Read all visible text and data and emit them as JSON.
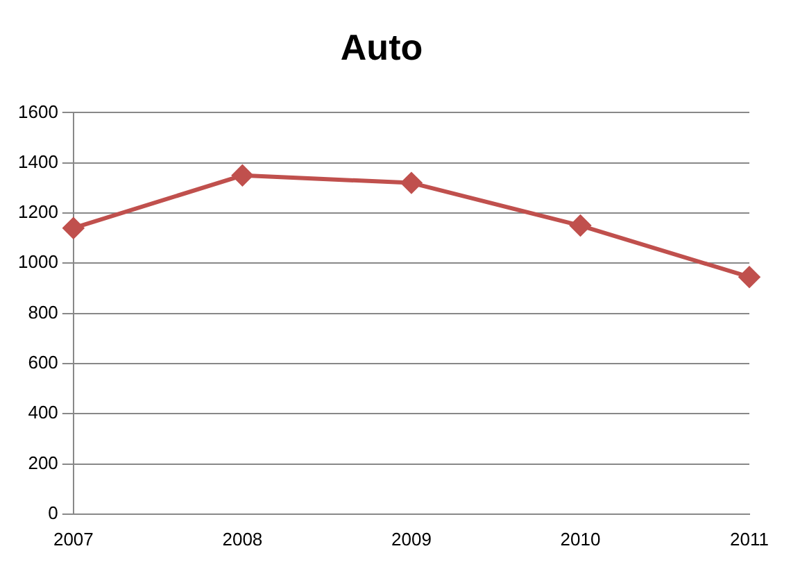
{
  "chart_data": {
    "type": "line",
    "title": "Auto",
    "categories": [
      "2007",
      "2008",
      "2009",
      "2010",
      "2011"
    ],
    "series": [
      {
        "color": "#c0504d",
        "values": [
          1140,
          1350,
          1320,
          1150,
          945
        ]
      }
    ],
    "ylim": [
      0,
      1600
    ],
    "yticks": [
      0,
      200,
      400,
      600,
      800,
      1000,
      1200,
      1400,
      1600
    ],
    "grid": "y",
    "legend": false,
    "marker": "diamond",
    "line_style": "solid"
  }
}
